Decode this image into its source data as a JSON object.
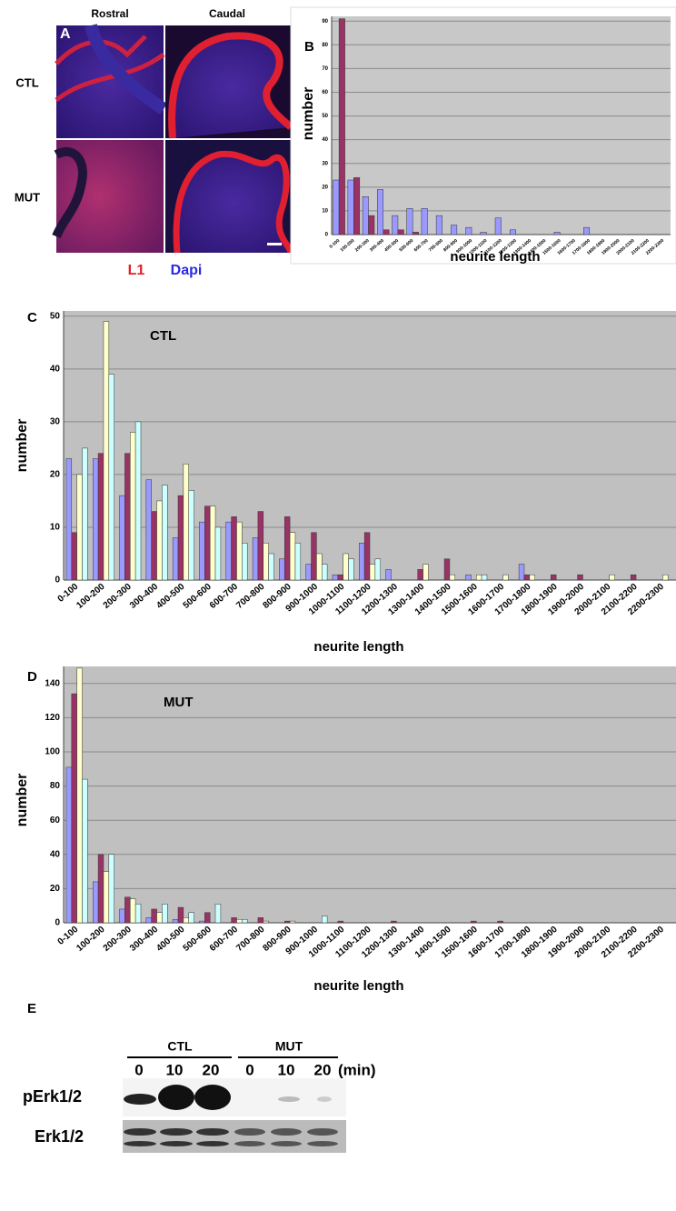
{
  "panel_a": {
    "letter": "A",
    "columns": [
      "Rostral",
      "Caudal"
    ],
    "rows": [
      "CTL",
      "MUT"
    ],
    "stains": [
      "L1",
      "Dapi"
    ]
  },
  "chart_data": [
    {
      "type": "bar",
      "panel_label": "B",
      "y_label": "number",
      "x_label": "neurite length",
      "categories": [
        "0-100",
        "100-200",
        "200-300",
        "300-400",
        "400-500",
        "500-600",
        "600-700",
        "700-800",
        "800-900",
        "900-1000",
        "1000-1100",
        "1100-1200",
        "1200-1300",
        "1300-1400",
        "1400-1500",
        "1500-1600",
        "1600-1700",
        "1700-1800",
        "1800-1900",
        "1900-2000",
        "2000-2100",
        "2100-2200",
        "2200-2300"
      ],
      "series": [
        {
          "color": "#9999ff",
          "values": [
            23,
            23,
            16,
            19,
            8,
            11,
            11,
            8,
            4,
            3,
            1,
            7,
            2,
            0,
            0,
            1,
            0,
            3,
            0,
            0,
            0,
            0,
            0
          ]
        },
        {
          "color": "#993366",
          "values": [
            91,
            24,
            8,
            2,
            2,
            1,
            0,
            0,
            0,
            0,
            0,
            0,
            0,
            0,
            0,
            0,
            0,
            0,
            0,
            0,
            0,
            0,
            0
          ]
        }
      ],
      "ylim": [
        0,
        92
      ],
      "yticks": [
        0,
        10,
        20,
        30,
        40,
        50,
        60,
        70,
        80,
        90
      ],
      "grid": true
    },
    {
      "type": "bar",
      "panel_label": "C",
      "title": "CTL",
      "y_label": "number",
      "x_label": "neurite length",
      "categories": [
        "0-100",
        "100-200",
        "200-300",
        "300-400",
        "400-500",
        "500-600",
        "600-700",
        "700-800",
        "800-900",
        "900-1000",
        "1000-1100",
        "1100-1200",
        "1200-1300",
        "1300-1400",
        "1400-1500",
        "1500-1600",
        "1600-1700",
        "1700-1800",
        "1800-1900",
        "1900-2000",
        "2000-2100",
        "2100-2200",
        "2200-2300"
      ],
      "series": [
        {
          "color": "#9999ff",
          "values": [
            23,
            23,
            16,
            19,
            8,
            11,
            11,
            8,
            4,
            3,
            1,
            7,
            2,
            0,
            0,
            1,
            0,
            3,
            0,
            0,
            0,
            0,
            0
          ]
        },
        {
          "color": "#993366",
          "values": [
            9,
            24,
            24,
            13,
            16,
            14,
            12,
            13,
            12,
            9,
            1,
            9,
            0,
            2,
            4,
            0,
            0,
            1,
            1,
            1,
            0,
            1,
            0
          ]
        },
        {
          "color": "#ffffcc",
          "values": [
            20,
            49,
            28,
            15,
            22,
            14,
            11,
            7,
            9,
            5,
            5,
            3,
            0,
            3,
            1,
            1,
            1,
            1,
            0,
            0,
            1,
            0,
            1
          ]
        },
        {
          "color": "#ccffff",
          "values": [
            25,
            39,
            30,
            18,
            17,
            10,
            7,
            5,
            7,
            3,
            4,
            4,
            0,
            0,
            0,
            1,
            0,
            0,
            0,
            0,
            0,
            0,
            0
          ]
        }
      ],
      "ylim": [
        0,
        51
      ],
      "yticks": [
        0,
        10,
        20,
        30,
        40,
        50
      ],
      "grid": true
    },
    {
      "type": "bar",
      "panel_label": "D",
      "title": "MUT",
      "y_label": "number",
      "x_label": "neurite length",
      "categories": [
        "0-100",
        "100-200",
        "200-300",
        "300-400",
        "400-500",
        "500-600",
        "600-700",
        "700-800",
        "800-900",
        "900-1000",
        "1000-1100",
        "1100-1200",
        "1200-1300",
        "1300-1400",
        "1400-1500",
        "1500-1600",
        "1600-1700",
        "1700-1800",
        "1800-1900",
        "1900-2000",
        "2000-2100",
        "2100-2200",
        "2200-2300"
      ],
      "series": [
        {
          "color": "#9999ff",
          "values": [
            91,
            24,
            8,
            3,
            2,
            1,
            0,
            0,
            0,
            0,
            0,
            0,
            0,
            0,
            0,
            0,
            0,
            0,
            0,
            0,
            0,
            0,
            0
          ]
        },
        {
          "color": "#993366",
          "values": [
            134,
            40,
            15,
            8,
            9,
            6,
            3,
            3,
            1,
            0,
            1,
            0,
            1,
            0,
            0,
            1,
            1,
            0,
            0,
            0,
            0,
            0,
            0
          ]
        },
        {
          "color": "#ffffcc",
          "values": [
            149,
            30,
            14,
            6,
            3,
            0,
            2,
            1,
            1,
            0,
            0,
            0,
            0,
            0,
            0,
            0,
            0,
            0,
            0,
            0,
            0,
            0,
            0
          ]
        },
        {
          "color": "#ccffff",
          "values": [
            84,
            40,
            11,
            11,
            6,
            11,
            2,
            0,
            0,
            4,
            0,
            0,
            0,
            0,
            0,
            0,
            0,
            0,
            0,
            0,
            0,
            0,
            0
          ]
        }
      ],
      "ylim": [
        0,
        150
      ],
      "yticks": [
        0,
        20,
        40,
        60,
        80,
        100,
        120,
        140
      ],
      "grid": true
    }
  ],
  "panel_e": {
    "letter": "E",
    "groups": [
      "CTL",
      "MUT"
    ],
    "times": [
      "0",
      "10",
      "20",
      "0",
      "10",
      "20"
    ],
    "unit": "(min)",
    "rows": [
      "pErk1/2",
      "Erk1/2"
    ]
  }
}
